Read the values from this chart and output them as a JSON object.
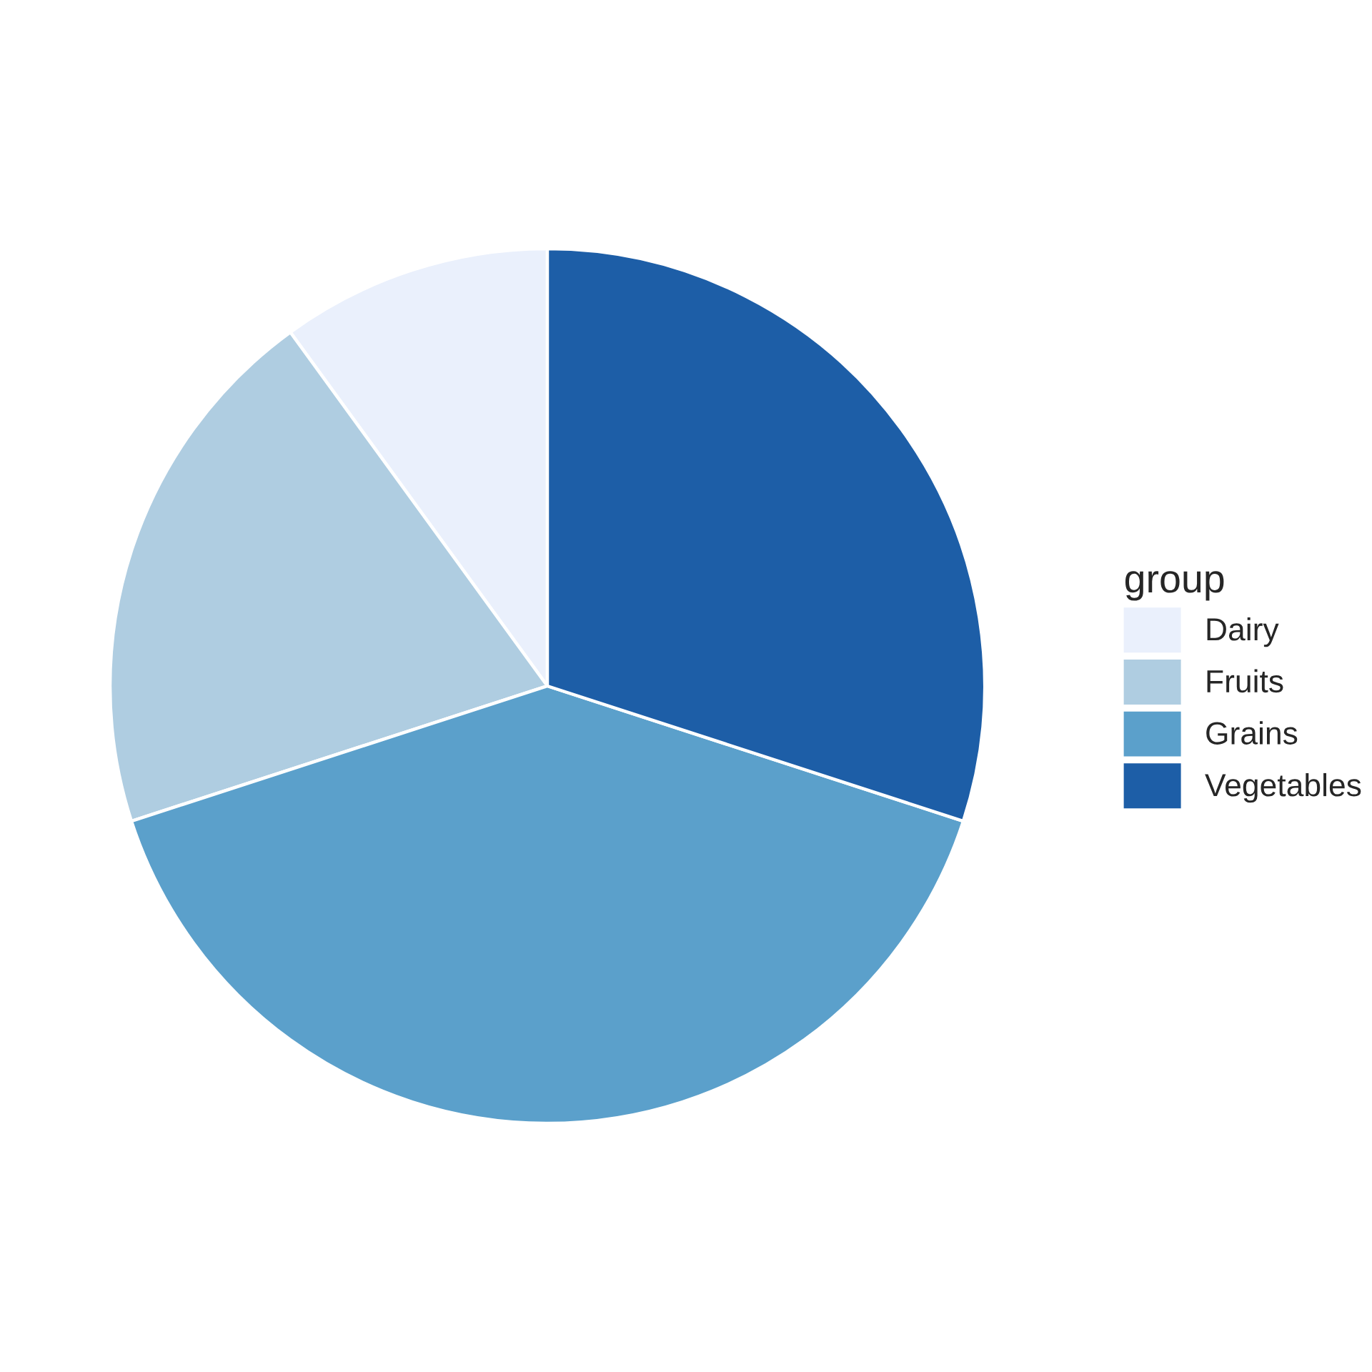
{
  "chart_data": {
    "type": "pie",
    "categories": [
      "Dairy",
      "Fruits",
      "Grains",
      "Vegetables"
    ],
    "values": [
      10,
      20,
      40,
      30
    ],
    "colors": [
      "#eaf0fc",
      "#afcde1",
      "#5ba0cb",
      "#1d5ea7"
    ],
    "legend_title": "group",
    "legend": "right"
  }
}
